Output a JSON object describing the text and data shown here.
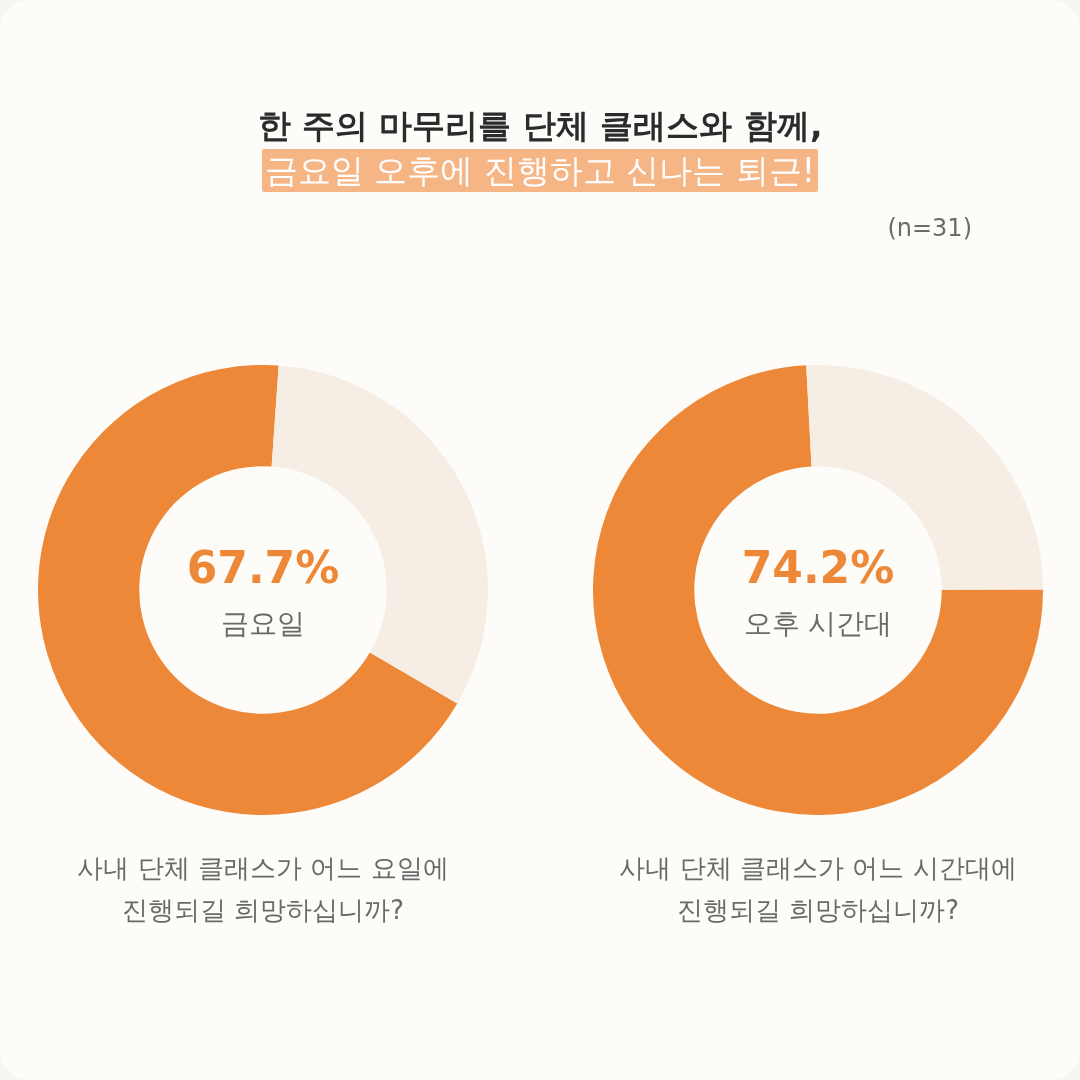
{
  "chart_data": [
    {
      "type": "other",
      "title": "한 주의 마무리를 단체 클래스와 함께,",
      "subtitle": "금요일 오후에 진행하고 신나는 퇴근!",
      "annotations": [
        "(n=31)"
      ]
    },
    {
      "type": "donut",
      "title": "사내 단체 클래스가 어느 요일에 진행되길 희망하십니까?",
      "categories": [
        "금요일",
        null
      ],
      "values": [
        67.7,
        32.3
      ],
      "colors": [
        "#ec8838",
        "#f6eee5"
      ],
      "value_labels": [
        "67.7%",
        null
      ]
    },
    {
      "type": "donut",
      "title": "사내 단체 클래스가 어느 시간대에 진행되길 희망하십니까?",
      "categories": [
        "오후 시간대",
        null
      ],
      "values": [
        74.2,
        25.8
      ],
      "colors": [
        "#ec8838",
        "#f6eee5"
      ],
      "value_labels": [
        "74.2%",
        null
      ]
    }
  ]
}
